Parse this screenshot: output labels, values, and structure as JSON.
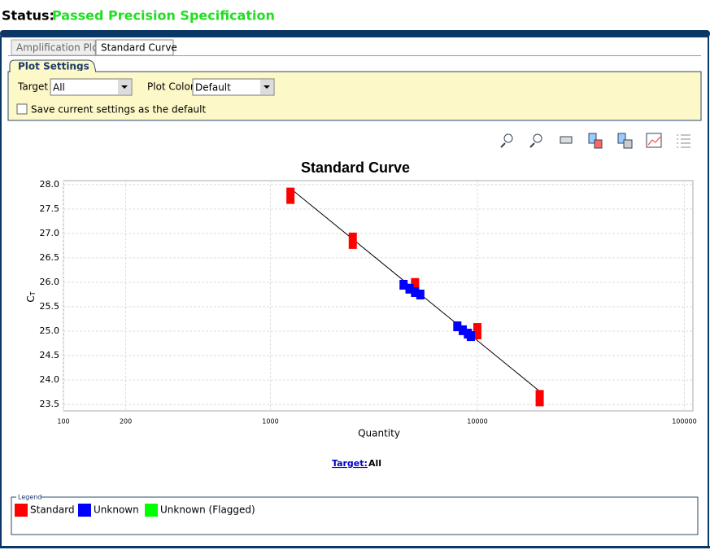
{
  "status": {
    "label": "Status:",
    "value": "Passed Precision Specification"
  },
  "tabs": [
    "Amplification Plot",
    "Standard Curve"
  ],
  "plot_settings": {
    "title": "Plot Settings",
    "target_label": "Target",
    "target_value": "All",
    "color_label": "Plot Color",
    "color_value": "Default",
    "checkbox_label": "Save current settings as the default"
  },
  "chart_data": {
    "type": "scatter",
    "title": "Standard Curve",
    "x_label": "Quantity",
    "y_label": "C",
    "y_label_sub": "T",
    "x_log": true,
    "xlim": [
      100,
      110000
    ],
    "ylim": [
      23.37,
      28.08
    ],
    "xticks": [
      100,
      200,
      1000,
      10000,
      100000
    ],
    "yticks": [
      {
        "value": 23.5,
        "label": "23.5"
      },
      {
        "value": 24,
        "label": "24.0"
      },
      {
        "value": 24.5,
        "label": "24.5"
      },
      {
        "value": 25,
        "label": "25.0"
      },
      {
        "value": 25.5,
        "label": "25.5"
      },
      {
        "value": 26,
        "label": "26.0"
      },
      {
        "value": 26.5,
        "label": "26.5"
      },
      {
        "value": 27,
        "label": "27.0"
      },
      {
        "value": 27.5,
        "label": "27.5"
      },
      {
        "value": 28,
        "label": "28.0"
      }
    ],
    "grid": true,
    "series": [
      {
        "name": "Standard",
        "color": "#ff0000",
        "x": [
          1250,
          2500,
          5000,
          10000,
          20000
        ],
        "values": [
          27.77,
          26.85,
          25.92,
          25.0,
          23.63
        ]
      },
      {
        "name": "Unknown",
        "color": "#0000ff",
        "x": [
          4400,
          4700,
          5000,
          5300,
          8000,
          8500,
          9000,
          9300
        ],
        "values": [
          25.95,
          25.87,
          25.8,
          25.75,
          25.1,
          25.02,
          24.95,
          24.9
        ]
      },
      {
        "name": "Unknown (Flagged)",
        "color": "#00ff00",
        "x": [],
        "values": []
      }
    ],
    "regression_line": {
      "x": [
        1250,
        20000
      ],
      "values": [
        27.92,
        23.77
      ]
    }
  },
  "target_filter": {
    "label": "Target:",
    "value": "All"
  },
  "legend": {
    "title": "Legend"
  }
}
